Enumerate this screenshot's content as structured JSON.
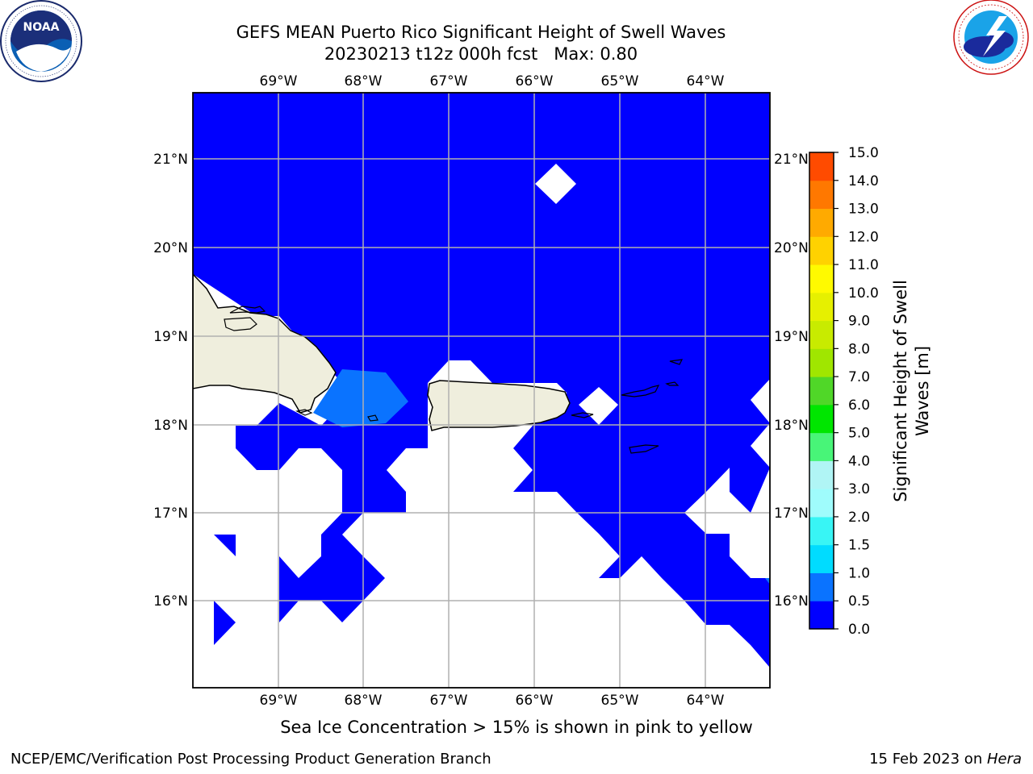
{
  "header": {
    "title_line1": "GEFS MEAN Puerto Rico Significant Height of Swell Waves",
    "title_line2": "20230213 t12z 000h fcst   Max: 0.80"
  },
  "logos": {
    "left": {
      "name": "NOAA",
      "ring_text": "NATIONAL OCEANIC AND ATMOSPHERIC ADMINISTRATION · U.S. DEPARTMENT OF COMMERCE",
      "icon": "noaa-logo"
    },
    "right": {
      "ring_text": "NATIONAL WEATHER SERVICE",
      "icon": "nws-logo"
    }
  },
  "map": {
    "projection_extent": {
      "lon": [
        -70.0,
        -63.25
      ],
      "lat": [
        15.0,
        21.75
      ]
    },
    "lon_ticks": [
      "69°W",
      "68°W",
      "67°W",
      "66°W",
      "65°W",
      "64°W"
    ],
    "lat_ticks": [
      "21°N",
      "20°N",
      "19°N",
      "18°N",
      "17°N",
      "16°N"
    ],
    "colors": {
      "ocean_low": "#0000ff",
      "ocean_mid": "#0a73ff",
      "land": "#efeedd",
      "grid": "#b0b0b0",
      "no_data": "#ffffff"
    }
  },
  "colorbar": {
    "label": "Significant Height of Swell Waves [m]",
    "label_line1": "Significant Height of Swell",
    "label_line2": "Waves [m]",
    "ticks": [
      "0.0",
      "0.5",
      "1.0",
      "1.5",
      "2.0",
      "3.0",
      "4.0",
      "5.0",
      "6.0",
      "7.0",
      "8.0",
      "9.0",
      "10.0",
      "11.0",
      "12.0",
      "13.0",
      "14.0",
      "15.0"
    ],
    "colors": [
      "#0000ff",
      "#0a73ff",
      "#00dcff",
      "#38f5f5",
      "#9ffcfc",
      "#b0f5f5",
      "#48f578",
      "#00e600",
      "#50d728",
      "#a0e600",
      "#c8eb00",
      "#e6f000",
      "#fffa00",
      "#ffd200",
      "#ffaa00",
      "#ff7800",
      "#ff4b00",
      "#ff0000"
    ]
  },
  "note": "Sea Ice Concentration > 15% is shown in pink to yellow",
  "footer": {
    "left": "NCEP/EMC/Verification Post Processing Product Generation Branch",
    "right_date": "15 Feb 2023 on ",
    "right_host": "Hera"
  }
}
